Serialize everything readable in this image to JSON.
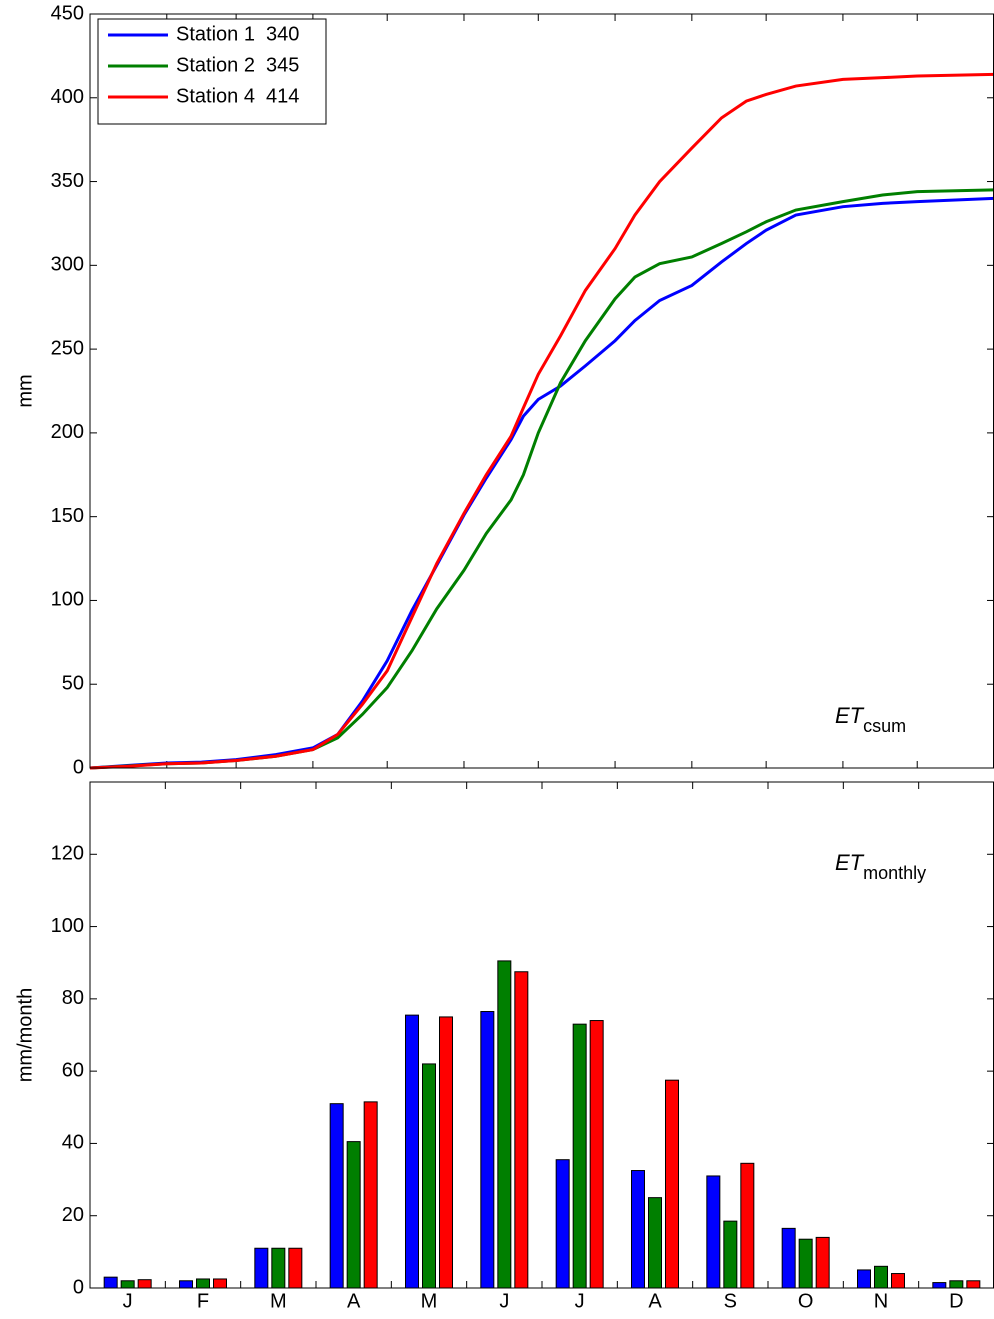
{
  "chart_data": [
    {
      "type": "line",
      "ylabel": "mm",
      "annotation": {
        "text": "ET",
        "sub": "csum"
      },
      "legend": "upper left",
      "xlim": [
        0,
        365
      ],
      "xticks": [
        0,
        31,
        59,
        90,
        120,
        151,
        181,
        212,
        243,
        273,
        304,
        334,
        365
      ],
      "ylim": [
        0,
        450
      ],
      "yticks": [
        0,
        50,
        100,
        150,
        200,
        250,
        300,
        350,
        400,
        450
      ],
      "x": [
        0,
        15,
        31,
        45,
        59,
        75,
        90,
        100,
        110,
        120,
        130,
        140,
        151,
        160,
        170,
        175,
        181,
        190,
        200,
        212,
        220,
        230,
        243,
        255,
        265,
        273,
        285,
        304,
        320,
        334,
        365
      ],
      "series": [
        {
          "name": "Station 1  340",
          "color": "#0000ff",
          "values": [
            0,
            1.5,
            3,
            3.5,
            5,
            8,
            12,
            20,
            40,
            64,
            94,
            121,
            151,
            173,
            196,
            210,
            220,
            228,
            240,
            255,
            267,
            279,
            288,
            302,
            313,
            321,
            330,
            335,
            337,
            338,
            340
          ]
        },
        {
          "name": "Station 2  345",
          "color": "#007f00",
          "values": [
            0,
            1.2,
            2.5,
            3,
            4.5,
            7,
            11,
            18,
            32,
            48,
            70,
            95,
            118,
            140,
            160,
            175,
            200,
            230,
            255,
            280,
            293,
            301,
            305,
            313,
            320,
            326,
            333,
            338,
            342,
            344,
            345
          ]
        },
        {
          "name": "Station 4  414",
          "color": "#ff0000",
          "values": [
            0,
            1,
            2.5,
            3,
            4.5,
            7,
            11,
            20,
            38,
            58,
            90,
            122,
            152,
            175,
            198,
            215,
            235,
            258,
            285,
            310,
            330,
            350,
            370,
            388,
            398,
            402,
            407,
            411,
            412,
            413,
            414
          ]
        }
      ]
    },
    {
      "type": "bar",
      "ylabel": "mm/month",
      "annotation": {
        "text": "ET",
        "sub": "monthly"
      },
      "categories": [
        "J",
        "F",
        "M",
        "A",
        "M",
        "J",
        "J",
        "A",
        "S",
        "O",
        "N",
        "D"
      ],
      "ylim": [
        0,
        140
      ],
      "yticks": [
        0,
        20,
        40,
        60,
        80,
        100,
        120
      ],
      "series": [
        {
          "color": "#0000ff",
          "values": [
            3,
            2,
            11,
            51,
            75.5,
            76.5,
            35.5,
            32.5,
            31,
            16.5,
            5,
            1.5
          ]
        },
        {
          "color": "#007f00",
          "values": [
            2,
            2.5,
            11,
            40.5,
            62,
            90.5,
            73,
            25,
            18.5,
            13.5,
            6,
            2
          ]
        },
        {
          "color": "#ff0000",
          "values": [
            2.3,
            2.5,
            11,
            51.5,
            75,
            87.5,
            74,
            57.5,
            34.5,
            14,
            4,
            2
          ]
        }
      ]
    }
  ]
}
